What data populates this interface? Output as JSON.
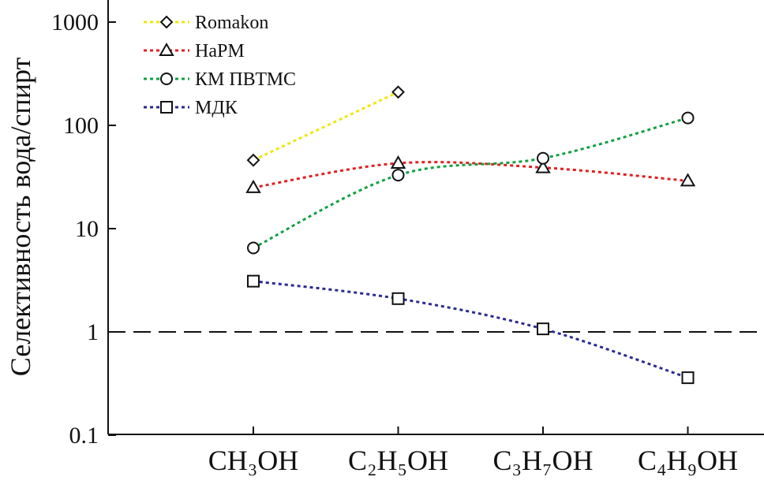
{
  "chart_data": {
    "type": "line",
    "title": "",
    "xlabel": "",
    "ylabel": "Селективность вода/спирт",
    "yscale": "log",
    "ylim": [
      0.1,
      1000
    ],
    "yticks": [
      "0.1",
      "1",
      "10",
      "100",
      "1000"
    ],
    "yticks_values": [
      0.1,
      1,
      10,
      100,
      1000
    ],
    "categories": [
      "CH₃OH",
      "C₂H₅OH",
      "C₃H₇OH",
      "C₄H₉OH"
    ],
    "reference_line": {
      "y": 1,
      "style": "dashed"
    },
    "legend_position": "top-left",
    "series": [
      {
        "name": "Romakon",
        "color": "#f2e600",
        "marker": "diamond",
        "values": [
          46,
          210,
          null,
          null
        ]
      },
      {
        "name": "HaPM",
        "color": "#e02020",
        "marker": "triangle",
        "values": [
          25,
          43,
          39,
          29
        ]
      },
      {
        "name": "КМ ПВТМС",
        "color": "#10a040",
        "marker": "circle",
        "values": [
          6.5,
          33,
          48,
          118
        ]
      },
      {
        "name": "МДК",
        "color": "#2a2a90",
        "marker": "square",
        "values": [
          3.1,
          2.1,
          1.07,
          0.36
        ]
      }
    ]
  }
}
